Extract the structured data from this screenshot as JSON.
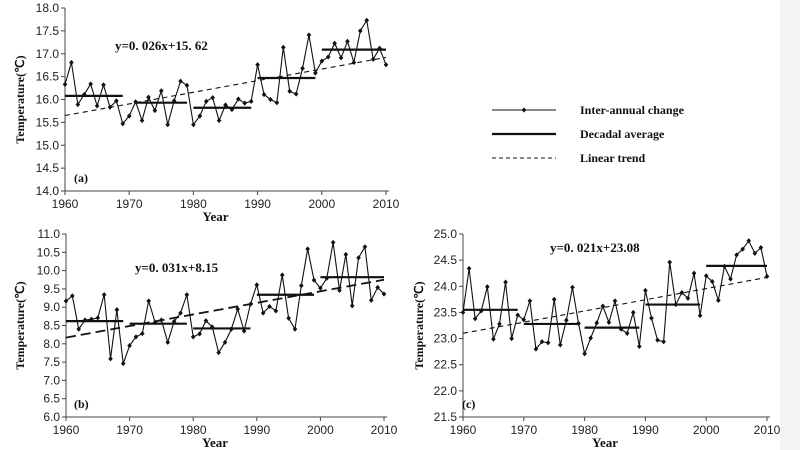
{
  "legend": {
    "items": [
      {
        "label": "Inter-annual change",
        "style": "line-marker"
      },
      {
        "label": "Decadal average",
        "style": "thick-line"
      },
      {
        "label": "Linear trend",
        "style": "dashed"
      }
    ]
  },
  "colors": {
    "line": "#111111",
    "axis": "#444444"
  },
  "chart_data": [
    {
      "type": "line",
      "panel_label": "(a)",
      "equation": "y=0. 026x+15. 62",
      "xlabel": "Year",
      "ylabel": "Temperature(℃)",
      "xlim": [
        1960,
        2010
      ],
      "ylim": [
        14.0,
        18.0
      ],
      "xticks": [
        1960,
        1970,
        1980,
        1990,
        2000,
        2010
      ],
      "yticks": [
        "14.0",
        "14.5",
        "15.0",
        "15.5",
        "16.0",
        "16.5",
        "17.0",
        "17.5",
        "18.0"
      ],
      "x_start": 1960,
      "values": [
        16.33,
        16.81,
        15.89,
        16.11,
        16.34,
        15.86,
        16.32,
        15.83,
        15.97,
        15.47,
        15.64,
        15.95,
        15.54,
        16.05,
        15.76,
        16.19,
        15.45,
        15.97,
        16.4,
        16.31,
        15.45,
        15.64,
        15.96,
        16.04,
        15.54,
        15.88,
        15.78,
        16.01,
        15.92,
        15.96,
        16.76,
        16.11,
        16.0,
        15.93,
        17.14,
        16.18,
        16.12,
        16.68,
        17.41,
        16.58,
        16.84,
        16.93,
        17.23,
        16.91,
        17.27,
        16.81,
        17.5,
        17.73,
        16.88,
        17.12,
        16.76
      ],
      "decadal": [
        {
          "from": 1960,
          "to": 1969,
          "value": 16.08
        },
        {
          "from": 1971,
          "to": 1979,
          "value": 15.93
        },
        {
          "from": 1980,
          "to": 1989,
          "value": 15.82
        },
        {
          "from": 1990,
          "to": 1999,
          "value": 16.47
        },
        {
          "from": 2000,
          "to": 2010,
          "value": 17.09
        }
      ],
      "trend": [
        [
          1960,
          15.65
        ],
        [
          2010,
          16.92
        ]
      ]
    },
    {
      "type": "line",
      "panel_label": "(b)",
      "equation": "y=0. 031x+8.15",
      "xlabel": "Year",
      "ylabel": "Temperature(℃)",
      "xlim": [
        1960,
        2010
      ],
      "ylim": [
        6.0,
        11.0
      ],
      "xticks": [
        1960,
        1970,
        1980,
        1990,
        2000,
        2010
      ],
      "yticks": [
        "6.0",
        "6.5",
        "7.0",
        "7.5",
        "8.0",
        "8.5",
        "9.0",
        "9.5",
        "10.0",
        "10.5",
        "11.0"
      ],
      "x_start": 1960,
      "values": [
        9.17,
        9.31,
        8.4,
        8.65,
        8.67,
        8.71,
        9.34,
        7.59,
        8.93,
        7.46,
        7.95,
        8.19,
        8.28,
        9.17,
        8.59,
        8.65,
        8.04,
        8.61,
        8.84,
        9.34,
        8.19,
        8.27,
        8.63,
        8.46,
        7.76,
        8.04,
        8.4,
        8.95,
        8.35,
        9.08,
        9.61,
        8.84,
        9.02,
        8.9,
        9.88,
        8.7,
        8.4,
        9.59,
        10.59,
        9.74,
        9.52,
        9.79,
        10.77,
        9.46,
        10.44,
        9.04,
        10.35,
        10.65,
        9.19,
        9.54,
        9.36
      ],
      "decadal": [
        {
          "from": 1960,
          "to": 1969,
          "value": 8.62
        },
        {
          "from": 1970,
          "to": 1979,
          "value": 8.55
        },
        {
          "from": 1980,
          "to": 1989,
          "value": 8.42
        },
        {
          "from": 1990,
          "to": 1999,
          "value": 9.34
        },
        {
          "from": 2000,
          "to": 2010,
          "value": 9.82
        }
      ],
      "trend": [
        [
          1960,
          8.17
        ],
        [
          2010,
          9.75
        ]
      ]
    },
    {
      "type": "line",
      "panel_label": "(c)",
      "equation": "y=0. 021x+23.08",
      "xlabel": "Year",
      "ylabel": "Temperature(℃)",
      "xlim": [
        1960,
        2010
      ],
      "ylim": [
        21.5,
        25.0
      ],
      "xticks": [
        1960,
        1970,
        1980,
        1990,
        2000,
        2010
      ],
      "yticks": [
        "21.5",
        "22.0",
        "22.5",
        "23.0",
        "23.5",
        "24.0",
        "24.5",
        "25.0"
      ],
      "x_start": 1960,
      "values": [
        23.5,
        24.34,
        23.38,
        23.53,
        23.99,
        22.99,
        23.28,
        24.08,
        23.0,
        23.45,
        23.36,
        23.72,
        22.8,
        22.94,
        22.92,
        23.75,
        22.88,
        23.35,
        23.98,
        23.29,
        22.71,
        23.01,
        23.3,
        23.62,
        23.31,
        23.72,
        23.18,
        23.1,
        23.5,
        22.85,
        23.92,
        23.39,
        22.97,
        22.94,
        24.46,
        23.65,
        23.88,
        23.77,
        24.25,
        23.44,
        24.2,
        24.09,
        23.73,
        24.38,
        24.14,
        24.6,
        24.71,
        24.87,
        24.63,
        24.74,
        24.19
      ],
      "decadal": [
        {
          "from": 1960,
          "to": 1969,
          "value": 23.55
        },
        {
          "from": 1970,
          "to": 1979,
          "value": 23.28
        },
        {
          "from": 1980,
          "to": 1989,
          "value": 23.21
        },
        {
          "from": 1990,
          "to": 1999,
          "value": 23.65
        },
        {
          "from": 2000,
          "to": 2010,
          "value": 24.39
        }
      ],
      "trend": [
        [
          1960,
          23.1
        ],
        [
          2010,
          24.17
        ]
      ]
    }
  ]
}
